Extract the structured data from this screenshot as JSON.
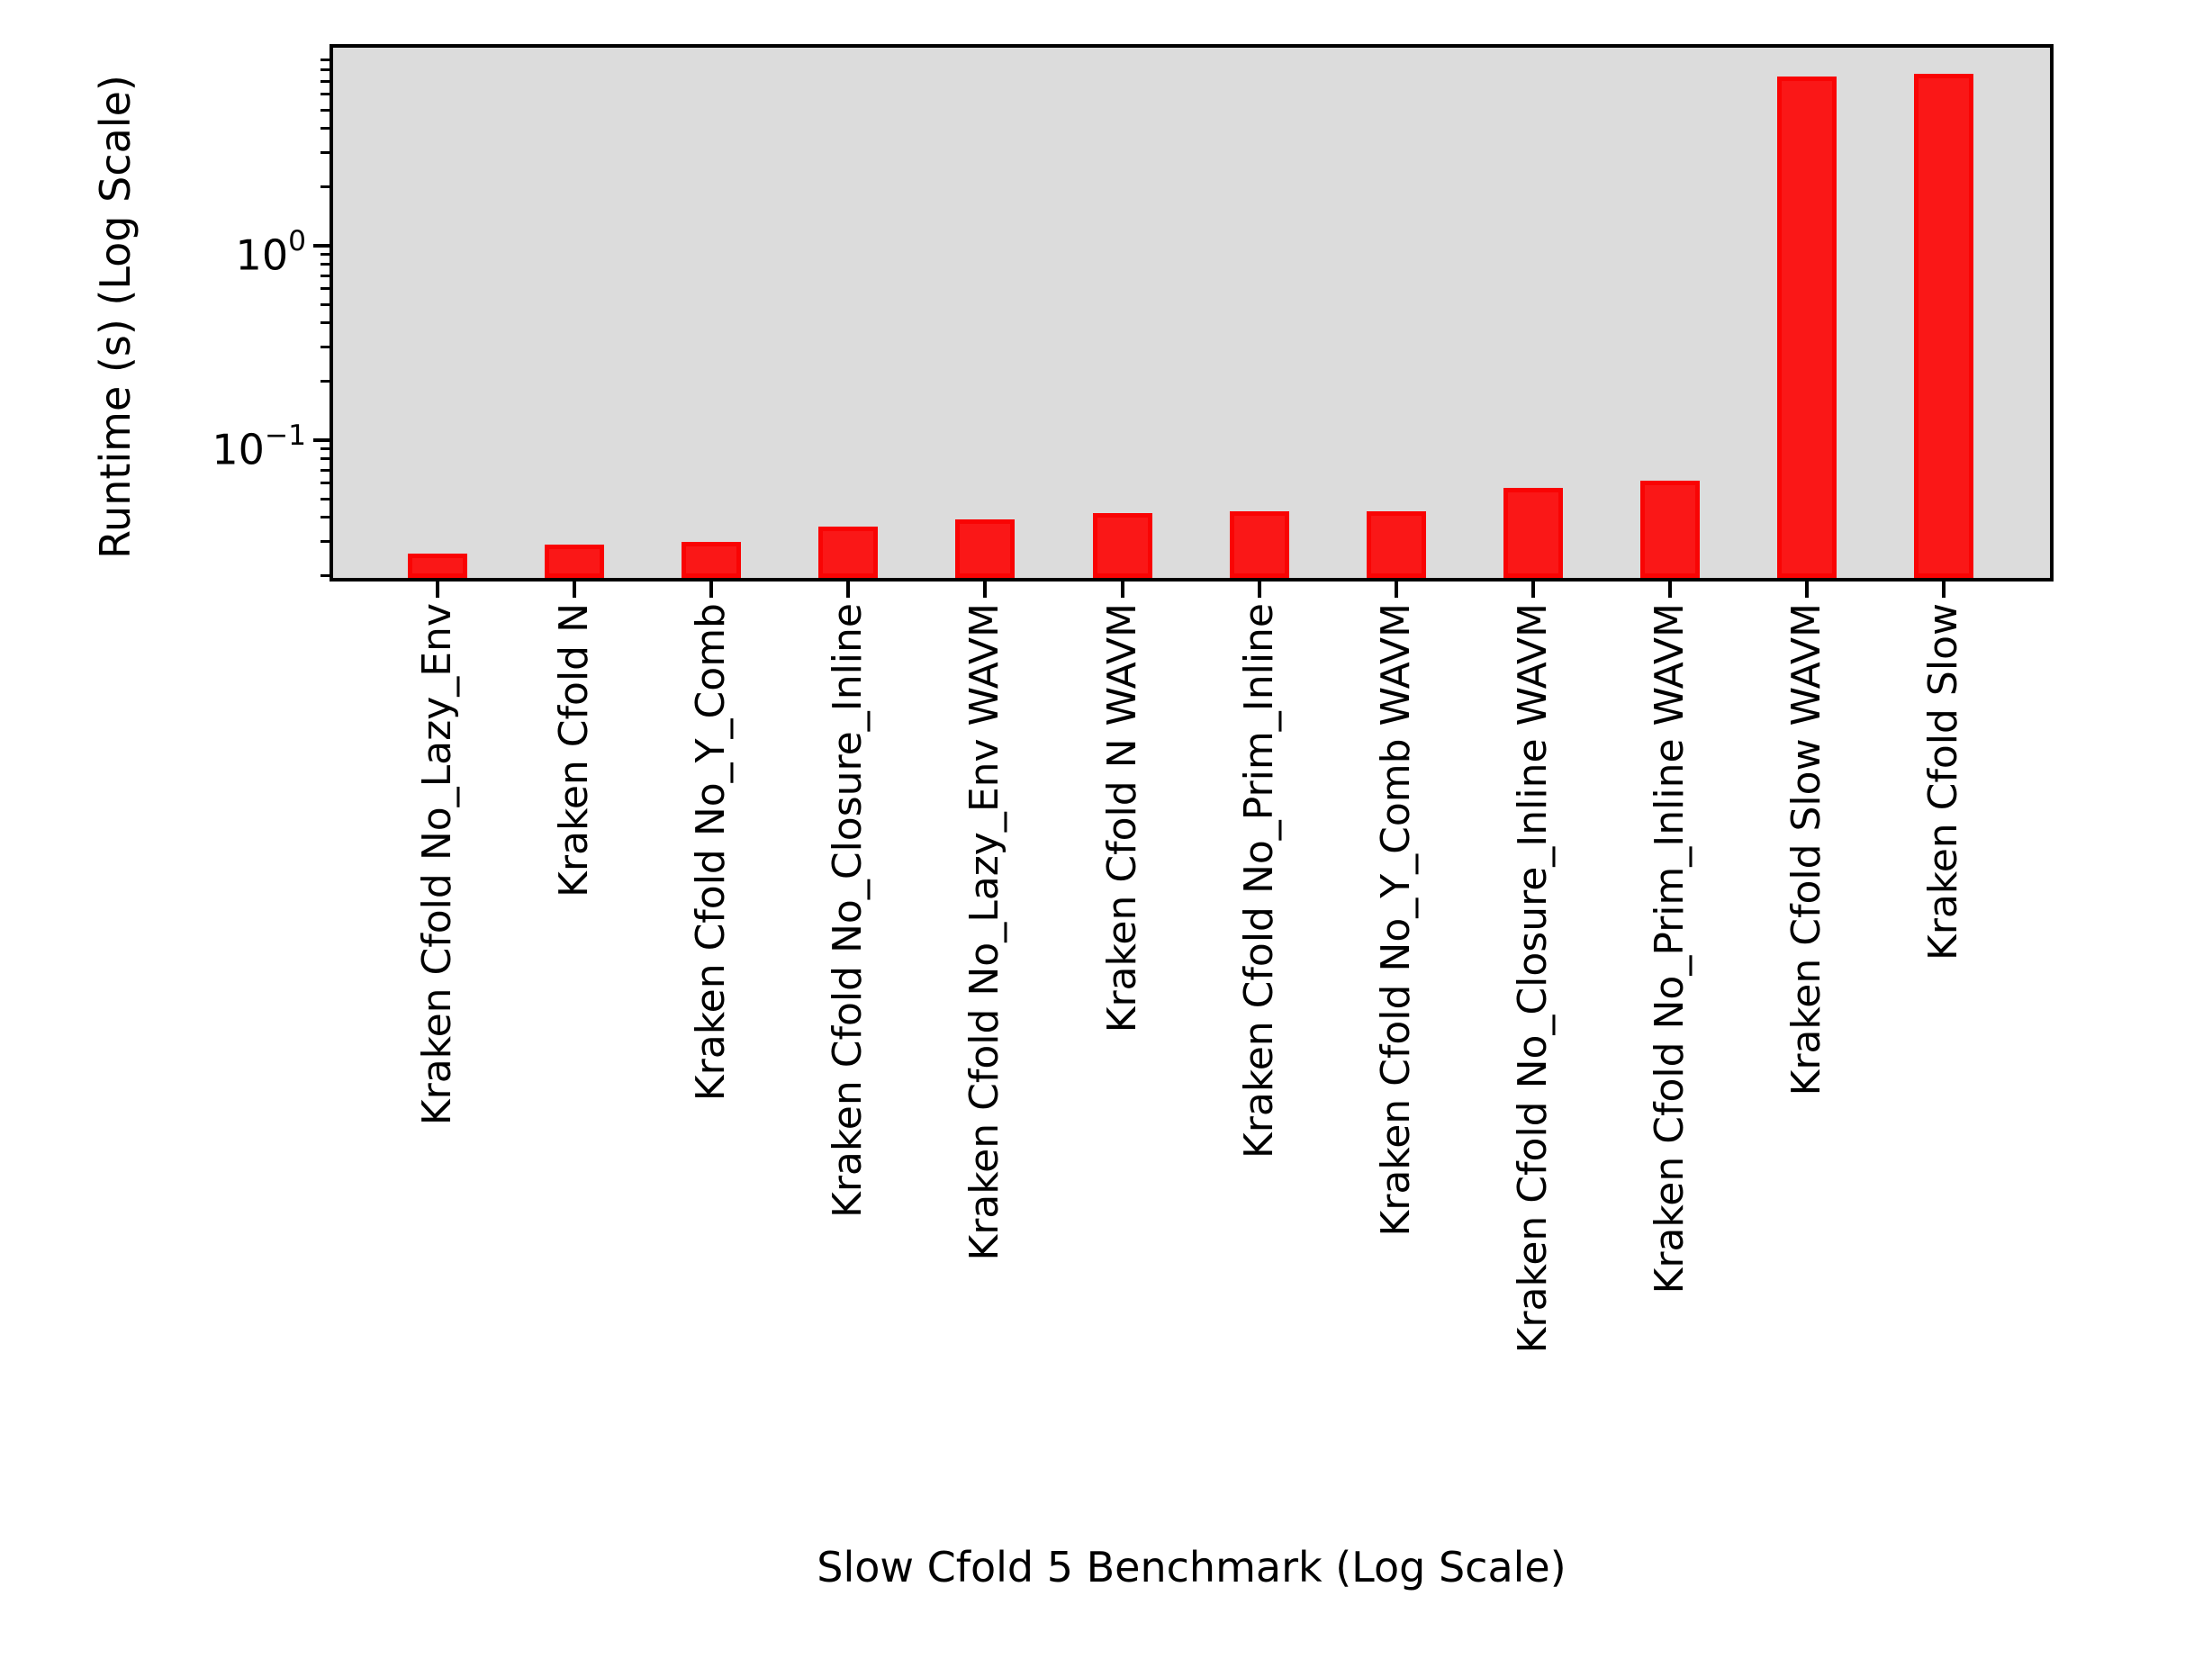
{
  "figure": {
    "background": "#ffffff"
  },
  "chart_data": {
    "type": "bar",
    "title": "",
    "xlabel": "Slow Cfold 5 Benchmark (Log Scale)",
    "ylabel": "Runtime (s) (Log Scale)",
    "yscale": "log",
    "ylim": [
      0.019,
      10.4
    ],
    "grid": false,
    "legend": {
      "visible": true,
      "entries": []
    },
    "categories": [
      "Kraken Cfold No_Lazy_Env",
      "Kraken Cfold N",
      "Kraken Cfold No_Y_Comb",
      "Kraken Cfold No_Closure_Inline",
      "Kraken Cfold No_Lazy_Env WAVM",
      "Kraken Cfold N WAVM",
      "Kraken Cfold No_Prim_Inline",
      "Kraken Cfold No_Y_Comb WAVM",
      "Kraken Cfold No_Closure_Inline WAVM",
      "Kraken Cfold No_Prim_Inline WAVM",
      "Kraken Cfold Slow WAVM",
      "Kraken Cfold Slow"
    ],
    "values": [
      0.026,
      0.029,
      0.03,
      0.036,
      0.039,
      0.042,
      0.043,
      0.043,
      0.057,
      0.062,
      7.4,
      7.7
    ],
    "bar_color": "#fa1717",
    "bar_edge_color": "#f90404",
    "plot_background": "#dcdcdc",
    "y_major_ticks": [
      {
        "value": 1,
        "base": "10",
        "exponent": "0"
      },
      {
        "value": 0.1,
        "base": "10",
        "exponent": "−1"
      }
    ]
  }
}
